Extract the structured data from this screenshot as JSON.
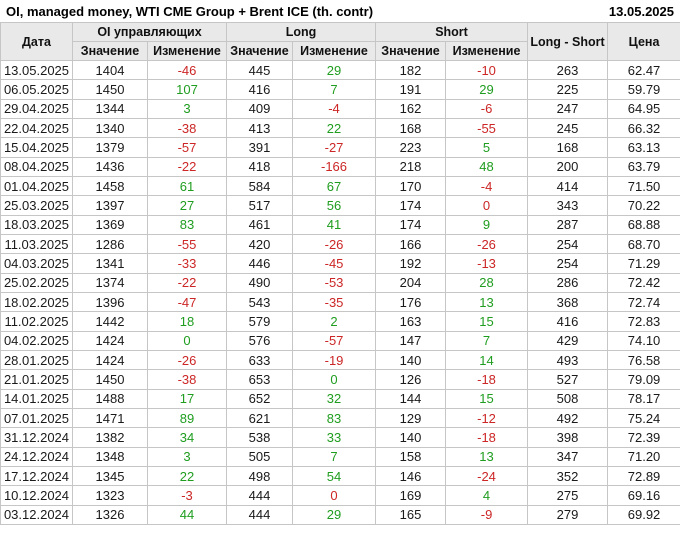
{
  "title": "OI, managed money, WTI CME Group + Brent ICE (th. contr)",
  "report_date": "13.05.2025",
  "colors": {
    "positive": "#1f9d1f",
    "negative": "#cc2626",
    "header_bg": "#e9e9e9",
    "border": "#c6c6c6",
    "text": "#1a1a1a"
  },
  "table_headers": {
    "date": "Дата",
    "oi_group": "OI управляющих",
    "long_group": "Long",
    "short_group": "Short",
    "long_short": "Long - Short",
    "price": "Цена",
    "value": "Значение",
    "change": "Изменение"
  },
  "chart_data": {
    "type": "table",
    "columns": [
      "Дата",
      "OI управляющих Значение",
      "OI управляющих Изменение",
      "Long Значение",
      "Long Изменение",
      "Short Значение",
      "Short Изменение",
      "Long - Short",
      "Цена"
    ],
    "rows": [
      {
        "date": "13.05.2025",
        "oi_value": 1404,
        "oi_change": -46,
        "oi_change_color": "negative",
        "long_value": 445,
        "long_change": 29,
        "long_change_color": "positive",
        "short_value": 182,
        "short_change": -10,
        "short_change_color": "negative",
        "long_short": 263,
        "price": "62.47"
      },
      {
        "date": "06.05.2025",
        "oi_value": 1450,
        "oi_change": 107,
        "oi_change_color": "positive",
        "long_value": 416,
        "long_change": 7,
        "long_change_color": "positive",
        "short_value": 191,
        "short_change": 29,
        "short_change_color": "positive",
        "long_short": 225,
        "price": "59.79"
      },
      {
        "date": "29.04.2025",
        "oi_value": 1344,
        "oi_change": 3,
        "oi_change_color": "positive",
        "long_value": 409,
        "long_change": -4,
        "long_change_color": "negative",
        "short_value": 162,
        "short_change": -6,
        "short_change_color": "negative",
        "long_short": 247,
        "price": "64.95"
      },
      {
        "date": "22.04.2025",
        "oi_value": 1340,
        "oi_change": -38,
        "oi_change_color": "negative",
        "long_value": 413,
        "long_change": 22,
        "long_change_color": "positive",
        "short_value": 168,
        "short_change": -55,
        "short_change_color": "negative",
        "long_short": 245,
        "price": "66.32"
      },
      {
        "date": "15.04.2025",
        "oi_value": 1379,
        "oi_change": -57,
        "oi_change_color": "negative",
        "long_value": 391,
        "long_change": -27,
        "long_change_color": "negative",
        "short_value": 223,
        "short_change": 5,
        "short_change_color": "positive",
        "long_short": 168,
        "price": "63.13"
      },
      {
        "date": "08.04.2025",
        "oi_value": 1436,
        "oi_change": -22,
        "oi_change_color": "negative",
        "long_value": 418,
        "long_change": -166,
        "long_change_color": "negative",
        "short_value": 218,
        "short_change": 48,
        "short_change_color": "positive",
        "long_short": 200,
        "price": "63.79"
      },
      {
        "date": "01.04.2025",
        "oi_value": 1458,
        "oi_change": 61,
        "oi_change_color": "positive",
        "long_value": 584,
        "long_change": 67,
        "long_change_color": "positive",
        "short_value": 170,
        "short_change": -4,
        "short_change_color": "negative",
        "long_short": 414,
        "price": "71.50"
      },
      {
        "date": "25.03.2025",
        "oi_value": 1397,
        "oi_change": 27,
        "oi_change_color": "positive",
        "long_value": 517,
        "long_change": 56,
        "long_change_color": "positive",
        "short_value": 174,
        "short_change": 0,
        "short_change_color": "negative",
        "long_short": 343,
        "price": "70.22"
      },
      {
        "date": "18.03.2025",
        "oi_value": 1369,
        "oi_change": 83,
        "oi_change_color": "positive",
        "long_value": 461,
        "long_change": 41,
        "long_change_color": "positive",
        "short_value": 174,
        "short_change": 9,
        "short_change_color": "positive",
        "long_short": 287,
        "price": "68.88"
      },
      {
        "date": "11.03.2025",
        "oi_value": 1286,
        "oi_change": -55,
        "oi_change_color": "negative",
        "long_value": 420,
        "long_change": -26,
        "long_change_color": "negative",
        "short_value": 166,
        "short_change": -26,
        "short_change_color": "negative",
        "long_short": 254,
        "price": "68.70"
      },
      {
        "date": "04.03.2025",
        "oi_value": 1341,
        "oi_change": -33,
        "oi_change_color": "negative",
        "long_value": 446,
        "long_change": -45,
        "long_change_color": "negative",
        "short_value": 192,
        "short_change": -13,
        "short_change_color": "negative",
        "long_short": 254,
        "price": "71.29"
      },
      {
        "date": "25.02.2025",
        "oi_value": 1374,
        "oi_change": -22,
        "oi_change_color": "negative",
        "long_value": 490,
        "long_change": -53,
        "long_change_color": "negative",
        "short_value": 204,
        "short_change": 28,
        "short_change_color": "positive",
        "long_short": 286,
        "price": "72.42"
      },
      {
        "date": "18.02.2025",
        "oi_value": 1396,
        "oi_change": -47,
        "oi_change_color": "negative",
        "long_value": 543,
        "long_change": -35,
        "long_change_color": "negative",
        "short_value": 176,
        "short_change": 13,
        "short_change_color": "positive",
        "long_short": 368,
        "price": "72.74"
      },
      {
        "date": "11.02.2025",
        "oi_value": 1442,
        "oi_change": 18,
        "oi_change_color": "positive",
        "long_value": 579,
        "long_change": 2,
        "long_change_color": "positive",
        "short_value": 163,
        "short_change": 15,
        "short_change_color": "positive",
        "long_short": 416,
        "price": "72.83"
      },
      {
        "date": "04.02.2025",
        "oi_value": 1424,
        "oi_change": 0,
        "oi_change_color": "positive",
        "long_value": 576,
        "long_change": -57,
        "long_change_color": "negative",
        "short_value": 147,
        "short_change": 7,
        "short_change_color": "positive",
        "long_short": 429,
        "price": "74.10"
      },
      {
        "date": "28.01.2025",
        "oi_value": 1424,
        "oi_change": -26,
        "oi_change_color": "negative",
        "long_value": 633,
        "long_change": -19,
        "long_change_color": "negative",
        "short_value": 140,
        "short_change": 14,
        "short_change_color": "positive",
        "long_short": 493,
        "price": "76.58"
      },
      {
        "date": "21.01.2025",
        "oi_value": 1450,
        "oi_change": -38,
        "oi_change_color": "negative",
        "long_value": 653,
        "long_change": 0,
        "long_change_color": "positive",
        "short_value": 126,
        "short_change": -18,
        "short_change_color": "negative",
        "long_short": 527,
        "price": "79.09"
      },
      {
        "date": "14.01.2025",
        "oi_value": 1488,
        "oi_change": 17,
        "oi_change_color": "positive",
        "long_value": 652,
        "long_change": 32,
        "long_change_color": "positive",
        "short_value": 144,
        "short_change": 15,
        "short_change_color": "positive",
        "long_short": 508,
        "price": "78.17"
      },
      {
        "date": "07.01.2025",
        "oi_value": 1471,
        "oi_change": 89,
        "oi_change_color": "positive",
        "long_value": 621,
        "long_change": 83,
        "long_change_color": "positive",
        "short_value": 129,
        "short_change": -12,
        "short_change_color": "negative",
        "long_short": 492,
        "price": "75.24"
      },
      {
        "date": "31.12.2024",
        "oi_value": 1382,
        "oi_change": 34,
        "oi_change_color": "positive",
        "long_value": 538,
        "long_change": 33,
        "long_change_color": "positive",
        "short_value": 140,
        "short_change": -18,
        "short_change_color": "negative",
        "long_short": 398,
        "price": "72.39"
      },
      {
        "date": "24.12.2024",
        "oi_value": 1348,
        "oi_change": 3,
        "oi_change_color": "positive",
        "long_value": 505,
        "long_change": 7,
        "long_change_color": "positive",
        "short_value": 158,
        "short_change": 13,
        "short_change_color": "positive",
        "long_short": 347,
        "price": "71.20"
      },
      {
        "date": "17.12.2024",
        "oi_value": 1345,
        "oi_change": 22,
        "oi_change_color": "positive",
        "long_value": 498,
        "long_change": 54,
        "long_change_color": "positive",
        "short_value": 146,
        "short_change": -24,
        "short_change_color": "negative",
        "long_short": 352,
        "price": "72.89"
      },
      {
        "date": "10.12.2024",
        "oi_value": 1323,
        "oi_change": -3,
        "oi_change_color": "negative",
        "long_value": 444,
        "long_change": 0,
        "long_change_color": "negative",
        "short_value": 169,
        "short_change": 4,
        "short_change_color": "positive",
        "long_short": 275,
        "price": "69.16"
      },
      {
        "date": "03.12.2024",
        "oi_value": 1326,
        "oi_change": 44,
        "oi_change_color": "positive",
        "long_value": 444,
        "long_change": 29,
        "long_change_color": "positive",
        "short_value": 165,
        "short_change": -9,
        "short_change_color": "negative",
        "long_short": 279,
        "price": "69.92"
      }
    ]
  }
}
